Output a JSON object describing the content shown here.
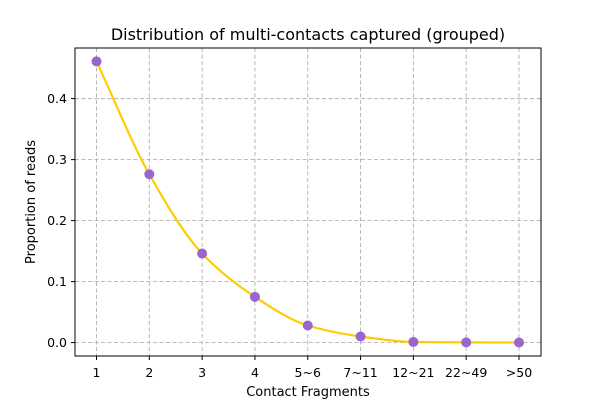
{
  "chart_data": {
    "type": "line",
    "title": "Distribution of multi-contacts captured (grouped)",
    "xlabel": "Contact Fragments",
    "ylabel": "Proportion of reads",
    "categories": [
      "1",
      "2",
      "3",
      "4",
      "5~6",
      "7~11",
      "12~21",
      "22~49",
      ">50"
    ],
    "series": [
      {
        "values": [
          0.461,
          0.276,
          0.146,
          0.075,
          0.028,
          0.01,
          0.001,
          0.0003,
          0.0001
        ]
      }
    ],
    "ylim": [
      -0.022,
      0.483
    ],
    "yticks": [
      0.0,
      0.1,
      0.2,
      0.3,
      0.4
    ],
    "ytick_labels": [
      "0.0",
      "0.1",
      "0.2",
      "0.3",
      "0.4"
    ],
    "grid": true,
    "legend": "none",
    "line_color": "#ffcc00",
    "marker_color": "#9966cc",
    "marker": "circle",
    "smooth": true
  }
}
